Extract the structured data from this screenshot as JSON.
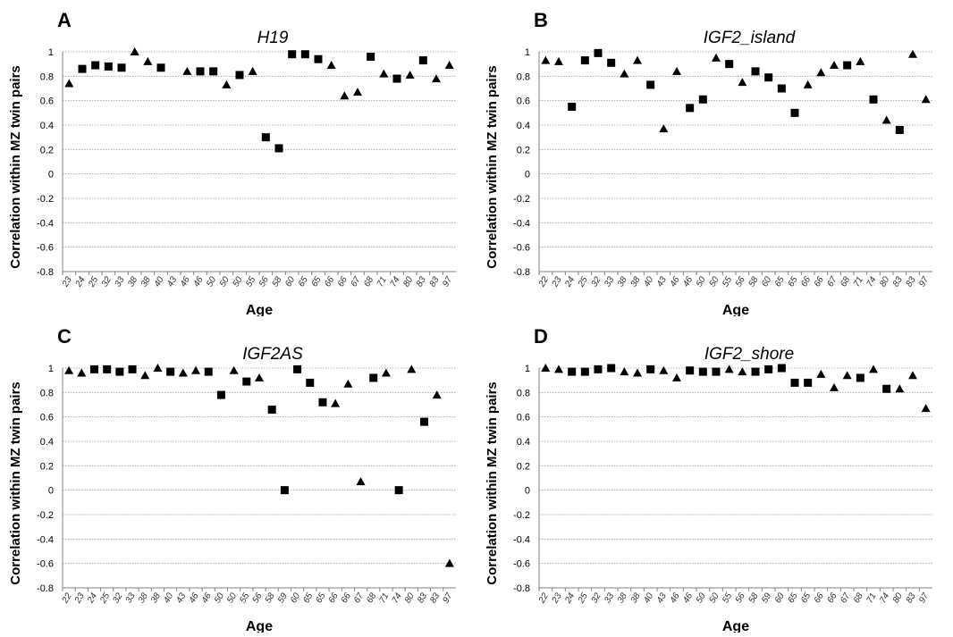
{
  "chart_data": [
    {
      "type": "scatter",
      "panel_label": "A",
      "title": "H19",
      "xlabel": "Age",
      "ylabel": "Correlation within MZ twin pairs",
      "ylim": [
        -0.8,
        1
      ],
      "yticks": [
        "-0.8",
        "-0.6",
        "-0.4",
        "-0.2",
        "0",
        "0.2",
        "0.4",
        "0.6",
        "0.8",
        "1"
      ],
      "grid": true,
      "categories": [
        "23",
        "24",
        "25",
        "32",
        "33",
        "38",
        "38",
        "40",
        "43",
        "46",
        "46",
        "50",
        "50",
        "50",
        "55",
        "56",
        "58",
        "60",
        "65",
        "65",
        "66",
        "66",
        "67",
        "68",
        "71",
        "74",
        "80",
        "83",
        "83",
        "97"
      ],
      "markers": [
        "triangle",
        "square",
        "square",
        "square",
        "square",
        "triangle",
        "triangle",
        "square",
        "triangle",
        "triangle",
        "square",
        "square",
        "triangle",
        "square",
        "triangle",
        "square",
        "square",
        "square",
        "square",
        "square",
        "triangle",
        "triangle",
        "triangle",
        "square",
        "triangle",
        "square",
        "triangle",
        "square",
        "triangle",
        "triangle"
      ],
      "values": [
        0.74,
        0.86,
        0.89,
        0.88,
        0.87,
        1.0,
        0.92,
        0.87,
        null,
        0.84,
        0.84,
        0.84,
        0.73,
        0.81,
        0.84,
        0.3,
        0.21,
        0.98,
        0.98,
        0.94,
        0.89,
        0.64,
        0.67,
        0.96,
        0.82,
        0.78,
        0.81,
        0.93,
        0.78,
        0.89
      ]
    },
    {
      "type": "scatter",
      "panel_label": "B",
      "title": "IGF2_island",
      "xlabel": "Age",
      "ylabel": "Correlation within MZ twin pairs",
      "ylim": [
        -0.8,
        1
      ],
      "yticks": [
        "-0.8",
        "-0.6",
        "-0.4",
        "-0.2",
        "0",
        "0.2",
        "0.4",
        "0.6",
        "0.8",
        "1"
      ],
      "grid": true,
      "categories": [
        "22",
        "23",
        "24",
        "25",
        "32",
        "33",
        "38",
        "38",
        "40",
        "43",
        "46",
        "46",
        "50",
        "50",
        "55",
        "56",
        "58",
        "60",
        "65",
        "65",
        "66",
        "66",
        "67",
        "68",
        "71",
        "74",
        "80",
        "83",
        "83",
        "97"
      ],
      "markers": [
        "triangle",
        "triangle",
        "square",
        "square",
        "square",
        "square",
        "triangle",
        "triangle",
        "square",
        "triangle",
        "triangle",
        "square",
        "square",
        "triangle",
        "square",
        "triangle",
        "square",
        "square",
        "square",
        "square",
        "triangle",
        "triangle",
        "triangle",
        "square",
        "triangle",
        "square",
        "triangle",
        "square",
        "triangle",
        "triangle"
      ],
      "values": [
        0.93,
        0.92,
        0.55,
        0.93,
        0.99,
        0.91,
        0.82,
        0.93,
        0.73,
        0.37,
        0.84,
        0.54,
        0.61,
        0.95,
        0.9,
        0.75,
        0.84,
        0.79,
        0.7,
        0.5,
        0.73,
        0.83,
        0.89,
        0.89,
        0.92,
        0.61,
        0.44,
        0.36,
        0.98,
        0.61
      ]
    },
    {
      "type": "scatter",
      "panel_label": "C",
      "title": "IGF2AS",
      "xlabel": "Age",
      "ylabel": "Correlation within MZ twin pairs",
      "ylim": [
        -0.8,
        1
      ],
      "yticks": [
        "-0.8",
        "-0.6",
        "-0.4",
        "-0.2",
        "0",
        "0.2",
        "0.4",
        "0.6",
        "0.8",
        "1"
      ],
      "grid": true,
      "categories": [
        "22",
        "23",
        "24",
        "25",
        "32",
        "33",
        "38",
        "38",
        "40",
        "43",
        "46",
        "46",
        "50",
        "50",
        "55",
        "56",
        "58",
        "59",
        "60",
        "65",
        "65",
        "66",
        "66",
        "67",
        "68",
        "71",
        "74",
        "80",
        "83",
        "83",
        "97"
      ],
      "markers": [
        "triangle",
        "triangle",
        "square",
        "square",
        "square",
        "square",
        "triangle",
        "triangle",
        "square",
        "triangle",
        "triangle",
        "square",
        "square",
        "triangle",
        "square",
        "triangle",
        "square",
        "square",
        "square",
        "square",
        "square",
        "triangle",
        "triangle",
        "triangle",
        "square",
        "triangle",
        "square",
        "triangle",
        "square",
        "triangle",
        "triangle"
      ],
      "values": [
        0.98,
        0.96,
        0.99,
        0.99,
        0.97,
        0.99,
        0.94,
        1.0,
        0.97,
        0.96,
        0.98,
        0.97,
        0.78,
        0.98,
        0.89,
        0.92,
        0.66,
        0.0,
        0.99,
        0.88,
        0.72,
        0.71,
        0.87,
        0.07,
        0.92,
        0.96,
        0.0,
        0.99,
        0.56,
        0.78,
        -0.6
      ]
    },
    {
      "type": "scatter",
      "panel_label": "D",
      "title": "IGF2_shore",
      "xlabel": "Age",
      "ylabel": "Correlation within MZ twin pairs",
      "ylim": [
        -0.8,
        1
      ],
      "yticks": [
        "-0.8",
        "-0.6",
        "-0.4",
        "-0.2",
        "0",
        "0.2",
        "0.4",
        "0.6",
        "0.8",
        "1"
      ],
      "grid": true,
      "categories": [
        "22",
        "23",
        "24",
        "25",
        "32",
        "33",
        "38",
        "38",
        "40",
        "43",
        "46",
        "46",
        "50",
        "50",
        "55",
        "56",
        "58",
        "59",
        "60",
        "65",
        "65",
        "66",
        "66",
        "67",
        "68",
        "71",
        "74",
        "80",
        "83",
        "97"
      ],
      "markers": [
        "triangle",
        "triangle",
        "square",
        "square",
        "square",
        "square",
        "triangle",
        "triangle",
        "square",
        "triangle",
        "triangle",
        "square",
        "square",
        "square",
        "triangle",
        "triangle",
        "square",
        "square",
        "square",
        "square",
        "square",
        "triangle",
        "triangle",
        "triangle",
        "square",
        "triangle",
        "square",
        "triangle",
        "triangle",
        "triangle"
      ],
      "values": [
        1.0,
        0.99,
        0.97,
        0.97,
        0.99,
        1.0,
        0.97,
        0.96,
        0.99,
        0.98,
        0.92,
        0.98,
        0.97,
        0.97,
        0.99,
        0.97,
        0.97,
        0.99,
        1.0,
        0.88,
        0.88,
        0.95,
        0.84,
        0.94,
        0.92,
        0.99,
        0.83,
        0.83,
        0.94,
        0.67
      ]
    }
  ]
}
